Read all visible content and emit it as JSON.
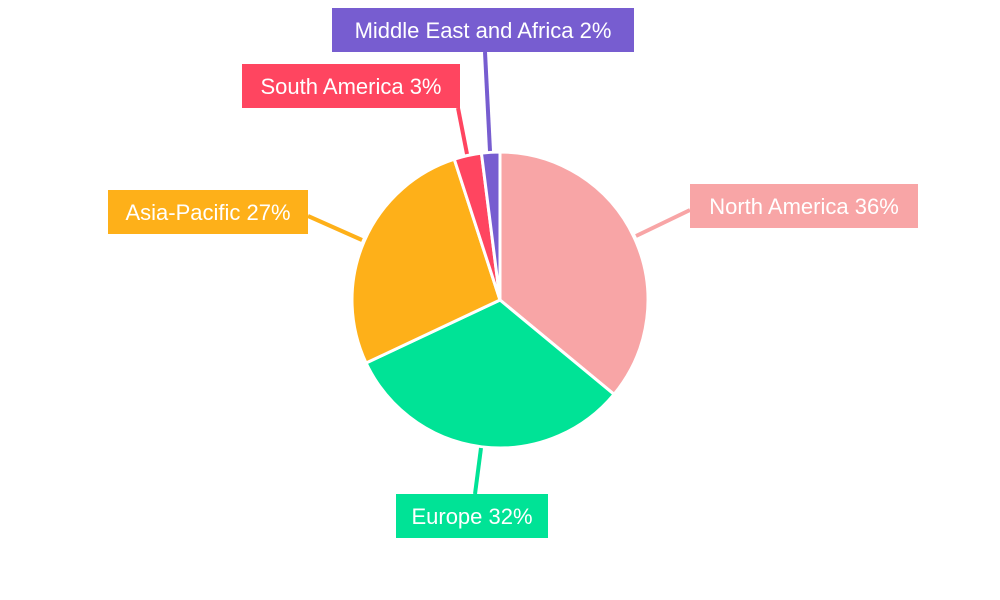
{
  "chart_data": {
    "type": "pie",
    "start_angle": "12 o'clock, clockwise",
    "slices": [
      {
        "label": "North America",
        "value": 36,
        "text": "North America 36%",
        "color": "#F8A5A6"
      },
      {
        "label": "Europe",
        "value": 32,
        "text": "Europe 32%",
        "color": "#00E396"
      },
      {
        "label": "Asia-Pacific",
        "value": 27,
        "text": "Asia-Pacific 27%",
        "color": "#FEB019"
      },
      {
        "label": "South America",
        "value": 3,
        "text": "South America 3%",
        "color": "#FF4560"
      },
      {
        "label": "Middle East and Africa",
        "value": 2,
        "text": "Middle East and Africa 2%",
        "color": "#775DD0"
      }
    ],
    "legend": "none",
    "labels": "outside with leader lines"
  }
}
